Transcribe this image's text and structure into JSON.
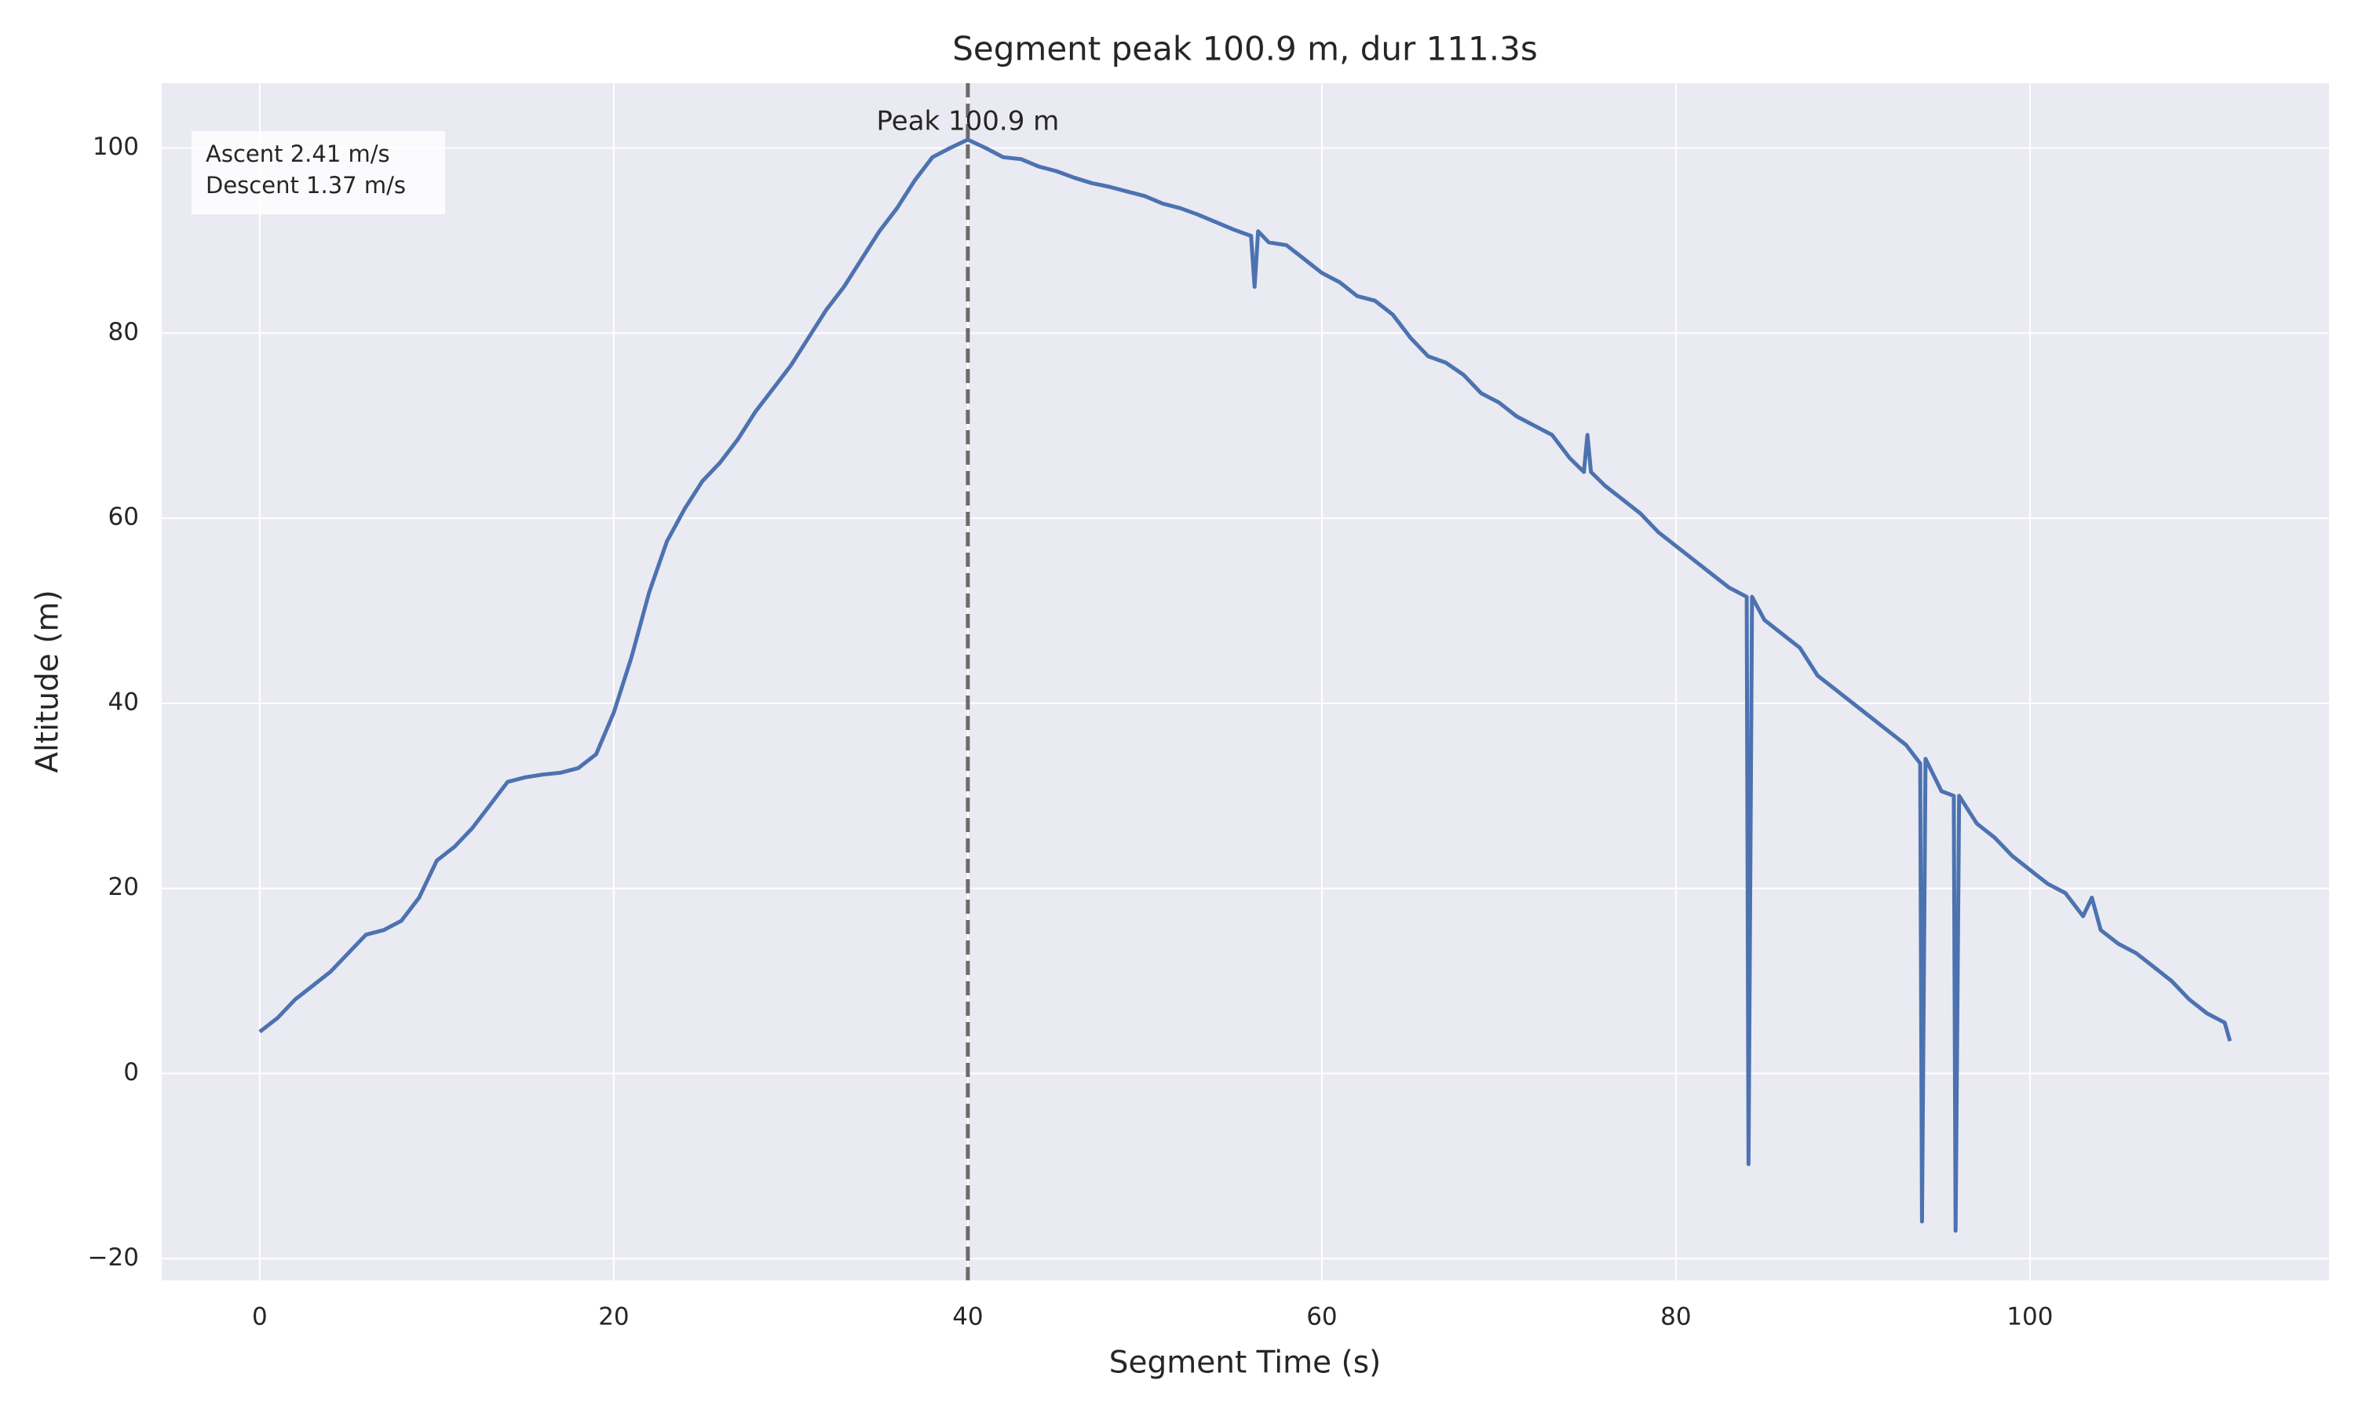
{
  "chart_data": {
    "type": "line",
    "title": "Segment peak 100.9 m, dur 111.3s",
    "xlabel": "Segment Time (s)",
    "ylabel": "Altitude (m)",
    "x": [
      0,
      1,
      2,
      3,
      4,
      5,
      6,
      7,
      8,
      9,
      10,
      11,
      12,
      13,
      14,
      15,
      16,
      17,
      18,
      19,
      20,
      21,
      22,
      23,
      24,
      25,
      26,
      27,
      28,
      29,
      30,
      31,
      32,
      33,
      34,
      35,
      36,
      37,
      38,
      39,
      40,
      41,
      42,
      43,
      44,
      45,
      46,
      47,
      48,
      49,
      50,
      51,
      52,
      53,
      54,
      55,
      56,
      56.2,
      56.4,
      57,
      58,
      59,
      60,
      61,
      62,
      63,
      64,
      65,
      66,
      67,
      68,
      69,
      70,
      71,
      72,
      73,
      74,
      74.8,
      75,
      75.2,
      76,
      77,
      78,
      79,
      80,
      81,
      82,
      83,
      84,
      84.1,
      84.3,
      85,
      86,
      87,
      88,
      89,
      90,
      91,
      92,
      93,
      93.8,
      93.9,
      94.1,
      95,
      95.7,
      95.8,
      96,
      97,
      98,
      99,
      100,
      101,
      102,
      103,
      103.5,
      104,
      105,
      106,
      107,
      108,
      109,
      110,
      111,
      111.3
    ],
    "values": [
      4.5,
      6,
      8,
      9.5,
      11,
      13,
      15,
      15.5,
      16.5,
      19,
      23,
      24.5,
      26.5,
      29,
      31.5,
      32,
      32.3,
      32.5,
      33,
      34.5,
      39,
      45,
      52,
      57.5,
      61,
      64,
      66,
      68.5,
      71.5,
      74,
      76.5,
      79.5,
      82.5,
      85,
      88,
      91,
      93.5,
      96.5,
      99,
      100,
      100.9,
      100,
      99,
      98.8,
      98,
      97.5,
      96.8,
      96.2,
      95.8,
      95.3,
      94.8,
      94,
      93.5,
      92.8,
      92,
      91.2,
      90.5,
      85,
      91,
      89.8,
      89.5,
      88,
      86.5,
      85.5,
      84,
      83.5,
      82,
      79.5,
      77.5,
      76.8,
      75.5,
      73.5,
      72.5,
      71,
      70,
      69,
      66.5,
      65,
      69,
      65,
      63.5,
      62,
      60.5,
      58.5,
      57,
      55.5,
      54,
      52.5,
      51.5,
      -9.8,
      51.5,
      49,
      47.5,
      46,
      43,
      41.5,
      40,
      38.5,
      37,
      35.5,
      33.5,
      -16,
      34,
      30.5,
      30,
      -17,
      30,
      27,
      25.5,
      23.5,
      22,
      20.5,
      19.5,
      17,
      19,
      15.5,
      14,
      13,
      11.5,
      10,
      8,
      6.5,
      5.5,
      3.5
    ],
    "color": "#4c72b0",
    "vline": 40,
    "vline_color": "#6b6b6b",
    "peak_label": "Peak 100.9 m",
    "stats": [
      "Ascent 2.41 m/s",
      "Descent 1.37 m/s"
    ],
    "xlim": [
      -5.54,
      116.9
    ],
    "ylim": [
      -22.35,
      107.0
    ],
    "xticks": [
      0,
      20,
      40,
      60,
      80,
      100
    ],
    "yticks": [
      {
        "value": -20,
        "label": "−20"
      },
      0,
      20,
      40,
      60,
      80,
      100
    ],
    "grid": true
  }
}
